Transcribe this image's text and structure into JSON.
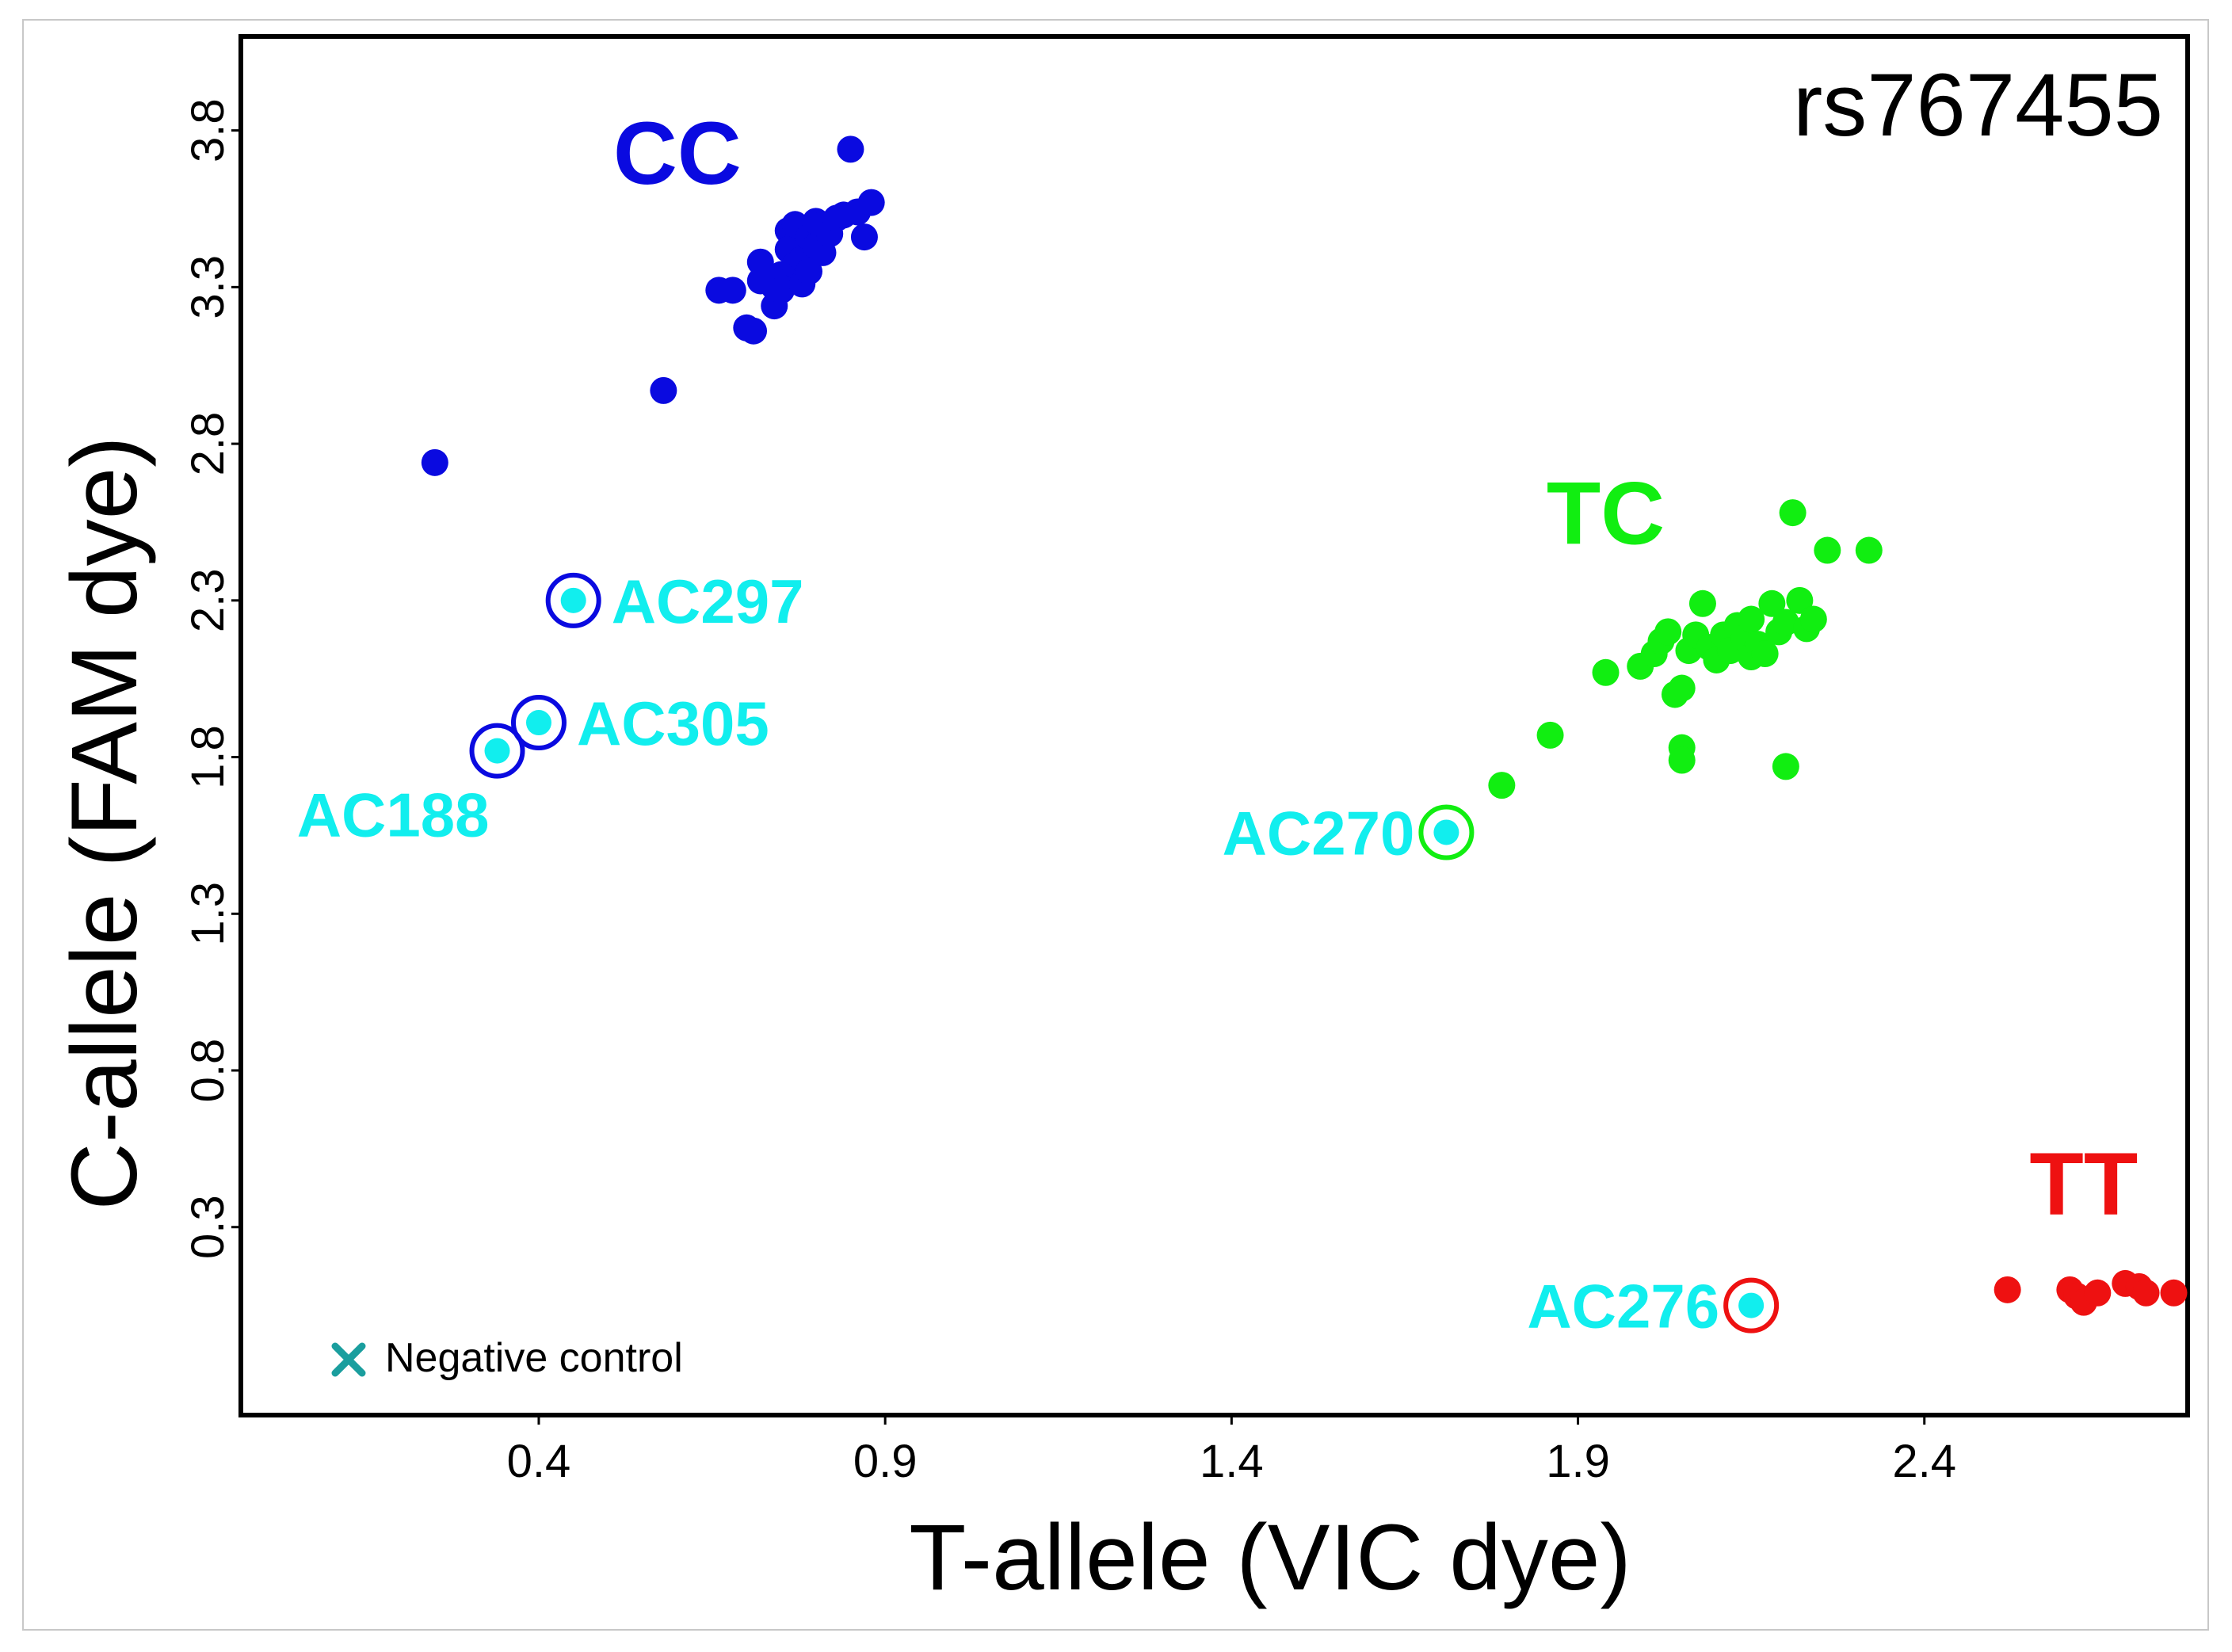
{
  "chart_data": {
    "type": "scatter",
    "title": "rs767455",
    "xlabel": "T-allele (VIC dye)",
    "ylabel": "C-allele (FAM dye)",
    "xlim": [
      -0.03,
      2.78
    ],
    "ylim": [
      -0.3,
      4.1
    ],
    "xticks": [
      0.4,
      0.9,
      1.4,
      1.9,
      2.4
    ],
    "yticks": [
      0.3,
      0.8,
      1.3,
      1.8,
      2.3,
      2.8,
      3.3,
      3.8
    ],
    "grid": false,
    "colors": {
      "CC": "#0a0ae0",
      "TC": "#11ee11",
      "TT": "#ee1111",
      "sample": "#11eeee",
      "legend_marker": "#1a9e9e"
    },
    "clusters": [
      {
        "name": "CC",
        "label": "CC",
        "label_pos": [
          0.6,
          3.63
        ],
        "points": [
          [
            0.25,
            2.74
          ],
          [
            0.58,
            2.97
          ],
          [
            0.66,
            3.29
          ],
          [
            0.68,
            3.29
          ],
          [
            0.7,
            3.17
          ],
          [
            0.71,
            3.16
          ],
          [
            0.72,
            3.32
          ],
          [
            0.72,
            3.38
          ],
          [
            0.74,
            3.24
          ],
          [
            0.74,
            3.3
          ],
          [
            0.75,
            3.34
          ],
          [
            0.75,
            3.29
          ],
          [
            0.76,
            3.48
          ],
          [
            0.76,
            3.42
          ],
          [
            0.77,
            3.37
          ],
          [
            0.77,
            3.5
          ],
          [
            0.78,
            3.39
          ],
          [
            0.78,
            3.31
          ],
          [
            0.79,
            3.46
          ],
          [
            0.79,
            3.35
          ],
          [
            0.8,
            3.51
          ],
          [
            0.8,
            3.43
          ],
          [
            0.81,
            3.41
          ],
          [
            0.81,
            3.5
          ],
          [
            0.82,
            3.47
          ],
          [
            0.83,
            3.52
          ],
          [
            0.84,
            3.53
          ],
          [
            0.85,
            3.74
          ],
          [
            0.86,
            3.54
          ],
          [
            0.87,
            3.46
          ],
          [
            0.88,
            3.57
          ]
        ]
      },
      {
        "name": "TC",
        "label": "TC",
        "label_pos": [
          1.94,
          2.48
        ],
        "points": [
          [
            1.79,
            1.71
          ],
          [
            1.86,
            1.87
          ],
          [
            1.94,
            2.07
          ],
          [
            1.99,
            2.09
          ],
          [
            2.01,
            2.13
          ],
          [
            2.02,
            2.17
          ],
          [
            2.03,
            2.2
          ],
          [
            2.04,
            2.0
          ],
          [
            2.05,
            2.02
          ],
          [
            2.05,
            1.83
          ],
          [
            2.05,
            1.79
          ],
          [
            2.06,
            2.14
          ],
          [
            2.07,
            2.19
          ],
          [
            2.08,
            2.29
          ],
          [
            2.09,
            2.15
          ],
          [
            2.1,
            2.11
          ],
          [
            2.11,
            2.19
          ],
          [
            2.12,
            2.14
          ],
          [
            2.13,
            2.22
          ],
          [
            2.14,
            2.18
          ],
          [
            2.15,
            2.12
          ],
          [
            2.15,
            2.24
          ],
          [
            2.16,
            2.16
          ],
          [
            2.17,
            2.13
          ],
          [
            2.18,
            2.29
          ],
          [
            2.19,
            2.2
          ],
          [
            2.2,
            2.23
          ],
          [
            2.2,
            1.77
          ],
          [
            2.21,
            2.58
          ],
          [
            2.22,
            2.3
          ],
          [
            2.23,
            2.21
          ],
          [
            2.24,
            2.24
          ],
          [
            2.26,
            2.46
          ],
          [
            2.32,
            2.46
          ]
        ]
      },
      {
        "name": "TT",
        "label": "TT",
        "label_pos": [
          2.63,
          0.34
        ],
        "points": [
          [
            2.52,
            0.1
          ],
          [
            2.61,
            0.1
          ],
          [
            2.62,
            0.08
          ],
          [
            2.63,
            0.06
          ],
          [
            2.65,
            0.09
          ],
          [
            2.69,
            0.12
          ],
          [
            2.71,
            0.11
          ],
          [
            2.72,
            0.09
          ],
          [
            2.76,
            0.09
          ]
        ]
      }
    ],
    "highlighted_samples": [
      {
        "id": "AC297",
        "x": 0.45,
        "y": 2.3,
        "ring": "CC"
      },
      {
        "id": "AC305",
        "x": 0.4,
        "y": 1.91,
        "ring": "CC"
      },
      {
        "id": "AC188",
        "x": 0.34,
        "y": 1.82,
        "ring": "CC"
      },
      {
        "id": "AC270",
        "x": 1.71,
        "y": 1.56,
        "ring": "TC"
      },
      {
        "id": "AC276",
        "x": 2.15,
        "y": 0.05,
        "ring": "TT"
      }
    ],
    "legend": [
      {
        "label": "Negative control",
        "marker": "x",
        "position": "bottom-left"
      }
    ]
  }
}
